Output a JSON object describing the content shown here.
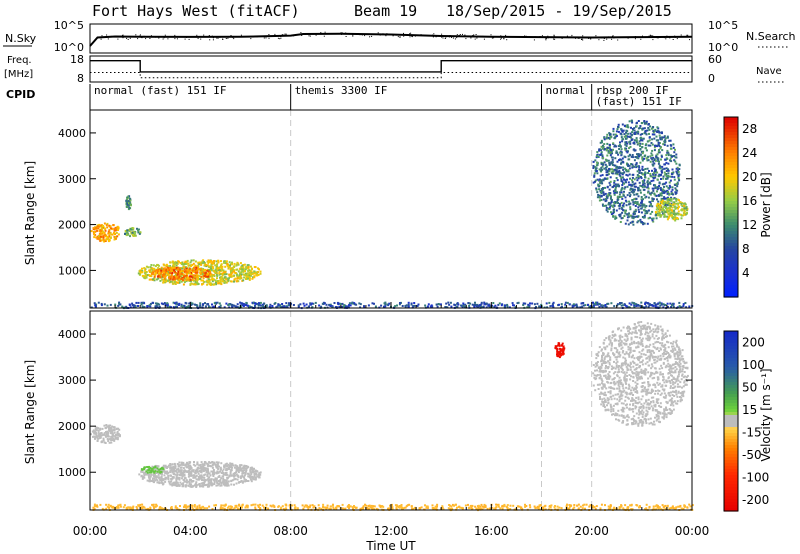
{
  "header": {
    "station": "Fort Hays West (fitACF)",
    "beam": "Beam 19",
    "date_range": "18/Sep/2015 - 19/Sep/2015"
  },
  "noise_panel": {
    "left_label": "N.Sky",
    "left_ticks": [
      "10^5",
      "10^0"
    ],
    "right_ticks": [
      "10^5",
      "10^0"
    ],
    "right_label": "N.Search"
  },
  "freq_panel": {
    "left_label_1": "Freq.",
    "left_label_2": "[MHz]",
    "left_ticks": [
      "18",
      "8"
    ],
    "right_ticks": [
      "60",
      "0"
    ],
    "right_label": "Nave"
  },
  "cpid": {
    "label": "CPID",
    "segments": [
      {
        "name": "normal (fast) 151 IF",
        "start": 0,
        "end": 8
      },
      {
        "name": "themis 3300 IF",
        "start": 8,
        "end": 18
      },
      {
        "name": "normal",
        "start": 18,
        "end": 20
      },
      {
        "name": "rbsp 200 IF",
        "start": 20,
        "end": 24
      },
      {
        "name": "(fast) 151 IF",
        "start": 20,
        "end": 24
      }
    ]
  },
  "colors": {
    "grid": "#c9c9c9",
    "noise_line": "#000000",
    "ground_scatter": "#bdbdbd"
  },
  "chart_data": [
    {
      "type": "line",
      "panel": "noise",
      "ylabel": "N.Sky",
      "yscale": "log",
      "ylim": [
        1,
        100000
      ],
      "series": [
        {
          "name": "N.Sky",
          "x": [
            0,
            0.3,
            1,
            2,
            4,
            6,
            8,
            8.5,
            10,
            12,
            14,
            16,
            18,
            20,
            22,
            24
          ],
          "y": [
            10,
            500,
            800,
            700,
            650,
            700,
            1200,
            2500,
            2800,
            2000,
            1000,
            700,
            600,
            500,
            600,
            700
          ]
        },
        {
          "name": "N.Search",
          "x": [
            0,
            24
          ],
          "y": [
            1,
            1
          ]
        }
      ]
    },
    {
      "type": "line",
      "panel": "frequency",
      "ylabel": "Freq. [MHz]",
      "ylim": [
        8,
        18
      ],
      "y2label": "Nave",
      "y2lim": [
        0,
        60
      ],
      "series": [
        {
          "name": "Freq.",
          "x": [
            0,
            2,
            2,
            14,
            14,
            24
          ],
          "y": [
            16.2,
            16.2,
            11.9,
            11.9,
            16.2,
            16.2
          ]
        },
        {
          "name": "Nave",
          "x": [
            0,
            2,
            2,
            14,
            14,
            24
          ],
          "y": [
            22,
            22,
            10,
            10,
            22,
            22
          ]
        }
      ]
    },
    {
      "type": "heatmap",
      "panel": "power",
      "xlabel": "",
      "ylabel": "Slant Range [km]",
      "xlim": [
        0,
        24
      ],
      "ylim": [
        180,
        4500
      ],
      "yticks": [
        1000,
        2000,
        3000,
        4000
      ],
      "colorbar": {
        "label": "Power [dB]",
        "ticks": [
          4,
          8,
          12,
          16,
          20,
          24,
          28
        ],
        "range": [
          0,
          30
        ]
      },
      "regions": [
        {
          "x": [
            0,
            1.2
          ],
          "y": [
            1650,
            2050
          ],
          "value": 22
        },
        {
          "x": [
            1.3,
            2.0
          ],
          "y": [
            1750,
            1950
          ],
          "value": 14
        },
        {
          "x": [
            1.4,
            1.6
          ],
          "y": [
            2350,
            2650
          ],
          "value": 12
        },
        {
          "x": [
            1.9,
            6.8
          ],
          "y": [
            700,
            1250
          ],
          "value": 18
        },
        {
          "x": [
            2.4,
            4.8
          ],
          "y": [
            800,
            1100
          ],
          "value": 24
        },
        {
          "x": [
            20.0,
            23.5
          ],
          "y": [
            2000,
            4300
          ],
          "value": 10
        },
        {
          "x": [
            22.5,
            23.8
          ],
          "y": [
            2100,
            2600
          ],
          "value": 17
        },
        {
          "x": [
            0,
            24
          ],
          "y": [
            200,
            320
          ],
          "value": 8
        }
      ]
    },
    {
      "type": "heatmap",
      "panel": "velocity",
      "xlabel": "Time UT",
      "ylabel": "Slant Range [km]",
      "xlim": [
        0,
        24
      ],
      "ylim": [
        180,
        4500
      ],
      "xticks": [
        "00:00",
        "04:00",
        "08:00",
        "12:00",
        "16:00",
        "20:00",
        "00:00"
      ],
      "yticks": [
        1000,
        2000,
        3000,
        4000
      ],
      "colorbar": {
        "label": "Velocity [m s⁻¹]",
        "ticks": [
          200,
          100,
          50,
          15,
          -15,
          -50,
          -100,
          -200
        ],
        "range": [
          -250,
          250
        ]
      },
      "regions": [
        {
          "x": [
            0,
            1.2
          ],
          "y": [
            1650,
            2050
          ],
          "value": 0
        },
        {
          "x": [
            1.9,
            6.8
          ],
          "y": [
            700,
            1250
          ],
          "value": 0
        },
        {
          "x": [
            2.0,
            3.0
          ],
          "y": [
            1000,
            1150
          ],
          "value": 40
        },
        {
          "x": [
            18.5,
            18.9
          ],
          "y": [
            3500,
            3850
          ],
          "value": -220
        },
        {
          "x": [
            20.0,
            23.8
          ],
          "y": [
            2000,
            4300
          ],
          "value": 0
        },
        {
          "x": [
            0,
            24
          ],
          "y": [
            200,
            320
          ],
          "value": -40
        }
      ]
    }
  ],
  "ui": {
    "xaxis_title": "Time UT",
    "power_ylabel": "Slant Range [km]",
    "velocity_ylabel": "Slant Range [km]",
    "power_cbar_label": "Power [dB]",
    "velocity_cbar_label": "Velocity [m s⁻¹]"
  }
}
